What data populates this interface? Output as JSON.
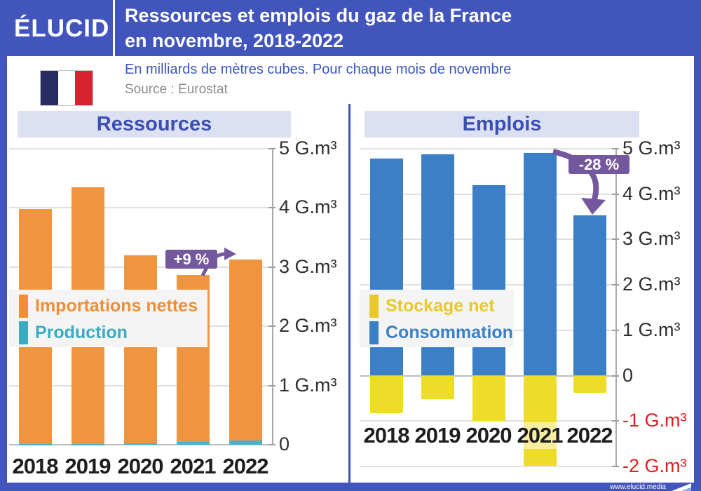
{
  "header": {
    "logo": "ÉLUCID",
    "title_line1": "Ressources et emplois du gaz de la France",
    "title_line2": "en novembre, 2018-2022"
  },
  "subtitle": {
    "note": "En milliards de mètres cubes. Pour chaque mois de novembre",
    "source": "Source : Eurostat"
  },
  "footer": {
    "site": "www.elucid.media"
  },
  "colors": {
    "header_blue": "#4155bd",
    "band_bg": "#dce0f3",
    "band_text": "#3a4fb0",
    "orange": "#f0953f",
    "teal": "#45b4c8",
    "blue": "#3b80c6",
    "yellow": "#eedc2a",
    "purple": "#74589e",
    "red_axis": "#e01f1f",
    "legend_bg": "#f4f4f5"
  },
  "chart_data": [
    {
      "type": "bar",
      "stacked": true,
      "title": "Ressources",
      "unit": "G.m³",
      "categories": [
        "2018",
        "2019",
        "2020",
        "2021",
        "2022"
      ],
      "series": [
        {
          "name": "Production",
          "color": "#45b4c8",
          "values": [
            0.01,
            0.01,
            0.02,
            0.05,
            0.07
          ]
        },
        {
          "name": "Importations nettes",
          "color": "#f0953f",
          "values": [
            3.97,
            4.34,
            3.18,
            2.82,
            3.06
          ]
        }
      ],
      "legend": [
        {
          "label": "Importations nettes",
          "color": "#ef8f35"
        },
        {
          "label": "Production",
          "color": "#3aabc0"
        }
      ],
      "ylim": [
        0,
        5
      ],
      "yticks": [
        {
          "v": 5,
          "label": "5 G.m³"
        },
        {
          "v": 4,
          "label": "4 G.m³"
        },
        {
          "v": 3,
          "label": "3 G.m³"
        },
        {
          "v": 2,
          "label": "2 G.m³"
        },
        {
          "v": 1,
          "label": "1 G.m³"
        },
        {
          "v": 0,
          "label": "0"
        }
      ],
      "annotation": {
        "text": "+9 %"
      }
    },
    {
      "type": "bar",
      "stacked": true,
      "title": "Emplois",
      "unit": "G.m³",
      "categories": [
        "2018",
        "2019",
        "2020",
        "2021",
        "2022"
      ],
      "series": [
        {
          "name": "Consommation",
          "color": "#3b80c6",
          "values": [
            4.78,
            4.88,
            4.2,
            4.9,
            3.53
          ]
        },
        {
          "name": "Stockage net",
          "color": "#eedc2a",
          "values": [
            -0.83,
            -0.52,
            -1.0,
            -1.98,
            -0.38
          ]
        }
      ],
      "legend": [
        {
          "label": "Stockage net",
          "color": "#e9c92a"
        },
        {
          "label": "Consommation",
          "color": "#3b80c6"
        }
      ],
      "ylim": [
        -2,
        5
      ],
      "yticks": [
        {
          "v": 5,
          "label": "5 G.m³"
        },
        {
          "v": 4,
          "label": "4 G.m³"
        },
        {
          "v": 3,
          "label": "3 G.m³"
        },
        {
          "v": 2,
          "label": "2 G.m³"
        },
        {
          "v": 1,
          "label": "1 G.m³"
        },
        {
          "v": 0,
          "label": "0"
        },
        {
          "v": -1,
          "label": "-1 G.m³",
          "negative": true
        },
        {
          "v": -2,
          "label": "-2 G.m³",
          "negative": true
        }
      ],
      "annotation": {
        "text": "-28 %"
      }
    }
  ]
}
